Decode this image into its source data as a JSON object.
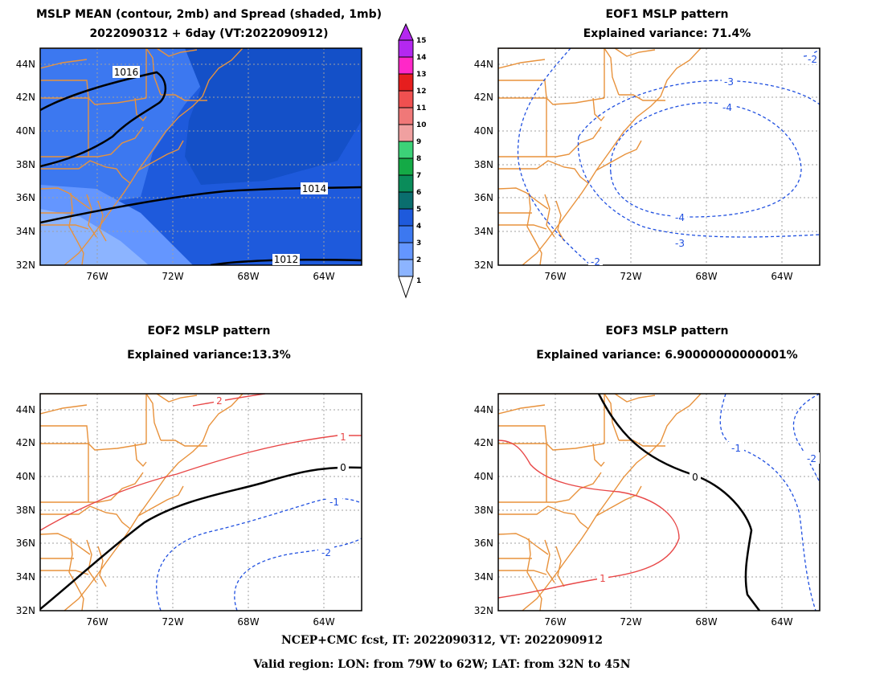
{
  "panels": [
    {
      "title1": "MSLP MEAN (contour, 2mb) and Spread (shaded, 1mb)",
      "title2": "2022090312 + 6day (VT:2022090912)"
    },
    {
      "title1": "EOF1 MSLP pattern",
      "title2": "Explained variance: 71.4%"
    },
    {
      "title1": "EOF2 MSLP pattern",
      "title2": "Explained variance:13.3%"
    },
    {
      "title1": "EOF3 MSLP pattern",
      "title2": "Explained variance: 6.90000000000001%"
    }
  ],
  "axes": {
    "lat_labels": [
      "32N",
      "34N",
      "36N",
      "38N",
      "40N",
      "42N",
      "44N"
    ],
    "lon_labels": [
      "76W",
      "72W",
      "68W",
      "64W"
    ]
  },
  "colorbar": {
    "labels": [
      "1",
      "2",
      "3",
      "4",
      "5",
      "6",
      "7",
      "8",
      "9",
      "10",
      "11",
      "12",
      "13",
      "14",
      "15"
    ],
    "colors": [
      "#b4cdff",
      "#8cb4ff",
      "#6496ff",
      "#3c78f0",
      "#1e5adc",
      "#0a6e6e",
      "#0a8c5a",
      "#14aa46",
      "#3cd278",
      "#f0a0a0",
      "#f07878",
      "#f05050",
      "#e61e1e",
      "#ff28c8",
      "#b428f0"
    ]
  },
  "mean_contours": [
    "1016",
    "1014",
    "1012"
  ],
  "eof1_contours": [
    "-2",
    "-3",
    "-4",
    "-4",
    "-3",
    "-2"
  ],
  "eof2_contours": [
    "2",
    "1",
    "0",
    "-1",
    "-2"
  ],
  "eof3_contours": [
    "0",
    "1",
    "-1",
    "-2"
  ],
  "footer": {
    "line1": "NCEP+CMC fcst, IT: 2022090312, VT: 2022090912",
    "line2": "Valid region: LON: from 79W to 62W; LAT: from 32N to 45N"
  },
  "colors": {
    "coast": "#e8923c",
    "positive": "#e84848",
    "negative": "#2050e0",
    "zero": "#000000"
  }
}
